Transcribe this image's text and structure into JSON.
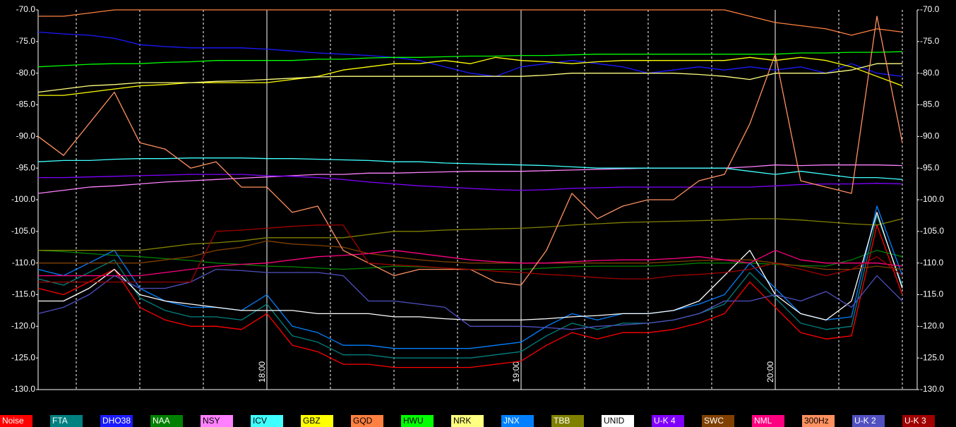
{
  "chart_data": {
    "type": "line",
    "x": [
      1026,
      1032,
      1038,
      1044,
      1050,
      1056,
      1062,
      1068,
      1074,
      1080,
      1086,
      1092,
      1098,
      1104,
      1110,
      1116,
      1122,
      1128,
      1134,
      1140,
      1146,
      1152,
      1158,
      1164,
      1170,
      1176,
      1182,
      1188,
      1194,
      1200,
      1206,
      1212,
      1218,
      1224,
      1230
    ],
    "xlim": [
      1026,
      1233.5
    ],
    "xticks": [
      {
        "value": 1080,
        "label": "18:00"
      },
      {
        "value": 1140,
        "label": "19:00"
      },
      {
        "value": 1200,
        "label": "20:00"
      }
    ],
    "xminor": [
      1035,
      1050,
      1065,
      1095,
      1110,
      1125,
      1155,
      1170,
      1185,
      1215,
      1230
    ],
    "ylim": [
      -130,
      -70
    ],
    "yticks": [
      {
        "value": -70,
        "label": "-70.0"
      },
      {
        "value": -75,
        "label": "-75.0"
      },
      {
        "value": -80,
        "label": "-80.0"
      },
      {
        "value": -85,
        "label": "-85.0"
      },
      {
        "value": -90,
        "label": "-90.0"
      },
      {
        "value": -95,
        "label": "-95.0"
      },
      {
        "value": -100,
        "label": "-100.0"
      },
      {
        "value": -105,
        "label": "-105.0"
      },
      {
        "value": -110,
        "label": "-110.0"
      },
      {
        "value": -115,
        "label": "-115.0"
      },
      {
        "value": -120,
        "label": "-120.0"
      },
      {
        "value": -125,
        "label": "-125.0"
      },
      {
        "value": -130,
        "label": "-130.0"
      }
    ],
    "series": [
      {
        "name": "Noise",
        "color": "#ff0000",
        "values": [
          -114,
          -115,
          -113,
          -111,
          -117,
          -119,
          -120,
          -120,
          -120.5,
          -118,
          -123,
          -124,
          -126,
          -126,
          -126.5,
          -126.5,
          -126.5,
          -126.5,
          -126,
          -125.5,
          -123,
          -121,
          -122,
          -121,
          -121,
          -120.5,
          -119.5,
          -118,
          -113,
          -117,
          -121,
          -122,
          -121.5,
          -104,
          -115
        ]
      },
      {
        "name": "FTA",
        "color": "#008080",
        "values": [
          -112.5,
          -113.5,
          -111.5,
          -109.5,
          -115.5,
          -117.5,
          -118.5,
          -118.5,
          -119,
          -116.5,
          -121.5,
          -122.5,
          -124.5,
          -124.5,
          -125,
          -125,
          -125,
          -125,
          -124.5,
          -124,
          -121.5,
          -119.5,
          -120.5,
          -119.5,
          -119.5,
          -119,
          -118,
          -116.5,
          -111.5,
          -115.5,
          -119.5,
          -120.5,
          -120,
          -102.5,
          -113.5
        ]
      },
      {
        "name": "DHO38",
        "color": "#1a1aff",
        "values": [
          -73.5,
          -73.8,
          -74,
          -74.5,
          -75.5,
          -75.8,
          -76,
          -76,
          -76,
          -76.2,
          -76.5,
          -76.8,
          -77,
          -77.2,
          -77.5,
          -78,
          -79,
          -80,
          -80.5,
          -79,
          -78.5,
          -78,
          -78.5,
          -79,
          -80,
          -79.5,
          -79,
          -79.5,
          -79,
          -79.5,
          -79,
          -80,
          -78.5,
          -80,
          -80.5
        ]
      },
      {
        "name": "NAA",
        "color": "#008000",
        "values": [
          -108,
          -108.2,
          -108.5,
          -108.8,
          -109,
          -109.3,
          -109.6,
          -110,
          -110.2,
          -110.5,
          -110.6,
          -110.8,
          -111,
          -110.8,
          -110.5,
          -110.6,
          -110.8,
          -111,
          -111,
          -111,
          -110.8,
          -110.6,
          -110.5,
          -110.5,
          -110.5,
          -110.3,
          -110,
          -110,
          -110,
          -110.2,
          -110.4,
          -110.5,
          -109.5,
          -108,
          -109
        ]
      },
      {
        "name": "NSY",
        "color": "#ff80ff",
        "values": [
          -99,
          -98.5,
          -98,
          -97.8,
          -97.5,
          -97.2,
          -97,
          -96.8,
          -96.6,
          -96.4,
          -96.2,
          -96,
          -96,
          -95.8,
          -95.8,
          -95.7,
          -95.6,
          -95.5,
          -95.5,
          -95.5,
          -95.4,
          -95.3,
          -95.2,
          -95.1,
          -95,
          -95,
          -95,
          -95,
          -94.8,
          -94.5,
          -94.6,
          -94.5,
          -94.5,
          -94.5,
          -94.6
        ]
      },
      {
        "name": "ICV",
        "color": "#40ffff",
        "values": [
          -94,
          -93.8,
          -93.8,
          -93.6,
          -93.5,
          -93.5,
          -93.4,
          -93.4,
          -93.4,
          -93.5,
          -93.5,
          -93.6,
          -93.7,
          -93.8,
          -94,
          -94,
          -94.2,
          -94.3,
          -94.4,
          -94.5,
          -94.6,
          -94.8,
          -95,
          -95,
          -95,
          -95,
          -95,
          -95,
          -95.5,
          -96,
          -95.5,
          -96,
          -96.5,
          -96.5,
          -96.8
        ]
      },
      {
        "name": "GBZ",
        "color": "#ffff00",
        "values": [
          -83.5,
          -83.5,
          -83,
          -82.5,
          -82,
          -81.8,
          -81.5,
          -81.5,
          -81.5,
          -81.5,
          -81,
          -80.5,
          -79.5,
          -79,
          -78.5,
          -78.5,
          -78,
          -78.5,
          -77.5,
          -78,
          -78.2,
          -78.5,
          -78.2,
          -78,
          -78,
          -78,
          -78,
          -78,
          -77.5,
          -78,
          -77.5,
          -78,
          -79,
          -80.5,
          -82
        ]
      },
      {
        "name": "GQD",
        "color": "#ff8040",
        "values": [
          -71,
          -71,
          -70.5,
          -70,
          -70,
          -70,
          -70,
          -70,
          -70,
          -70,
          -70,
          -70,
          -70,
          -70,
          -70,
          -70,
          -70,
          -70,
          -70,
          -70,
          -70,
          -70,
          -70,
          -70,
          -70,
          -70,
          -70,
          -70,
          -71,
          -72,
          -72.5,
          -73,
          -74,
          -73,
          -73.5
        ]
      },
      {
        "name": "HWU",
        "color": "#00ff00",
        "values": [
          -79,
          -78.8,
          -78.6,
          -78.5,
          -78.5,
          -78.3,
          -78.2,
          -78,
          -78,
          -78,
          -78,
          -77.8,
          -77.8,
          -77.6,
          -77.5,
          -77.5,
          -77.4,
          -77.3,
          -77.3,
          -77.2,
          -77.2,
          -77.1,
          -77,
          -77,
          -77,
          -77,
          -77,
          -77,
          -77,
          -77,
          -76.8,
          -76.8,
          -76.7,
          -76.7,
          -76.6
        ]
      },
      {
        "name": "NRK",
        "color": "#ffff80",
        "values": [
          -83,
          -82.5,
          -82,
          -81.8,
          -81.5,
          -81.5,
          -81.5,
          -81.3,
          -81.2,
          -81,
          -80.8,
          -80.6,
          -80.5,
          -80.5,
          -80.5,
          -80.5,
          -80.5,
          -80.5,
          -80.5,
          -80.5,
          -80.3,
          -80,
          -80,
          -80,
          -80,
          -80,
          -80.2,
          -80.5,
          -81,
          -80,
          -80,
          -80,
          -79.5,
          -78.5,
          -78.5
        ]
      },
      {
        "name": "JNX",
        "color": "#0080ff",
        "values": [
          -111,
          -112,
          -110,
          -108,
          -114,
          -116,
          -117,
          -117,
          -117.5,
          -115,
          -120,
          -121,
          -123,
          -123,
          -123.5,
          -123.5,
          -123.5,
          -123.5,
          -123,
          -122.5,
          -120,
          -118,
          -119,
          -118,
          -118,
          -117.5,
          -116.5,
          -115,
          -110,
          -114,
          -118,
          -119,
          -118.5,
          -101,
          -112
        ]
      },
      {
        "name": "TBB",
        "color": "#808000",
        "values": [
          -108,
          -108,
          -108,
          -108,
          -108,
          -107.5,
          -107,
          -106.8,
          -106.5,
          -106,
          -106,
          -106,
          -106,
          -105.5,
          -105,
          -105,
          -104.8,
          -104.7,
          -104.6,
          -104.5,
          -104.3,
          -104,
          -103.8,
          -103.6,
          -103.5,
          -103.4,
          -103.3,
          -103.2,
          -103,
          -103,
          -103.2,
          -103.5,
          -103.8,
          -104,
          -103
        ]
      },
      {
        "name": "UNID",
        "color": "#ffffff",
        "values": [
          -116,
          -116,
          -114,
          -111,
          -115,
          -116,
          -116.5,
          -117,
          -117.5,
          -117.5,
          -117.5,
          -118,
          -118,
          -118,
          -118.5,
          -118.5,
          -118.8,
          -119,
          -119,
          -119,
          -118.8,
          -118.5,
          -118.3,
          -118,
          -118,
          -117.5,
          -116,
          -112,
          -108,
          -115,
          -118,
          -119,
          -116,
          -102,
          -114
        ]
      },
      {
        "name": "U-K 4",
        "color": "#8000ff",
        "values": [
          -96.5,
          -96.5,
          -96.4,
          -96.3,
          -96.2,
          -96.1,
          -96,
          -96,
          -96,
          -96.2,
          -96.3,
          -96.5,
          -96.8,
          -97.2,
          -97.5,
          -97.8,
          -98,
          -98.2,
          -98.4,
          -98.5,
          -98.4,
          -98.2,
          -98.1,
          -98,
          -98,
          -98,
          -98,
          -98,
          -98,
          -97.8,
          -97.6,
          -97.5,
          -97.5,
          -97.4,
          -97.5
        ]
      },
      {
        "name": "SWC",
        "color": "#804000",
        "values": [
          -110,
          -110,
          -110,
          -110,
          -110,
          -109.5,
          -109,
          -108,
          -107.5,
          -106.5,
          -107,
          -107.2,
          -107.5,
          -108.5,
          -109,
          -109.5,
          -109.8,
          -110,
          -110,
          -110,
          -110,
          -110,
          -110,
          -110,
          -110,
          -109.8,
          -109.6,
          -109.5,
          -109.5,
          -110,
          -110.5,
          -111,
          -111,
          -110.5,
          -111
        ]
      },
      {
        "name": "NML",
        "color": "#ff0080",
        "values": [
          -112,
          -112,
          -112,
          -112,
          -112,
          -111.5,
          -111,
          -110.5,
          -110.2,
          -110,
          -109.5,
          -109,
          -108.8,
          -108.5,
          -108,
          -108.5,
          -109,
          -109.5,
          -109.8,
          -110,
          -110,
          -109.8,
          -109.6,
          -109.5,
          -109.5,
          -109.3,
          -109,
          -109.5,
          -110,
          -108,
          -109.5,
          -110,
          -110,
          -110,
          -110.5
        ]
      },
      {
        "name": "300Hz",
        "color": "#ff9060",
        "values": [
          -90,
          -93,
          -88,
          -83,
          -91,
          -92,
          -95,
          -94,
          -98,
          -98,
          -102,
          -101,
          -108,
          -110,
          -112,
          -111,
          -111,
          -111,
          -113,
          -113.5,
          -108,
          -99,
          -103,
          -101,
          -100,
          -100,
          -97,
          -96,
          -88,
          -77,
          -97,
          -98,
          -99,
          -71,
          -91
        ]
      },
      {
        "name": "U-K 2",
        "color": "#5050c0",
        "values": [
          -118,
          -117,
          -115,
          -112,
          -114,
          -114,
          -113,
          -111,
          -111.2,
          -111.5,
          -111.5,
          -111.5,
          -112,
          -116,
          -116,
          -116.5,
          -117,
          -120,
          -120,
          -120,
          -120.2,
          -120.5,
          -120,
          -119.8,
          -119.5,
          -119,
          -118,
          -116,
          -116,
          -115,
          -116,
          -114.5,
          -117,
          -112,
          -116
        ]
      },
      {
        "name": "U-K 3",
        "color": "#a00000",
        "values": [
          -113,
          -113,
          -113,
          -113,
          -113,
          -113,
          -113,
          -105,
          -104.8,
          -104.5,
          -104.2,
          -104,
          -104,
          -110,
          -110.3,
          -110.5,
          -110.8,
          -111,
          -111.3,
          -111.5,
          -111.8,
          -112,
          -112.3,
          -112.5,
          -112.5,
          -112,
          -111.8,
          -111.5,
          -111,
          -110,
          -111,
          -112,
          -111,
          -109,
          -112
        ]
      }
    ]
  }
}
